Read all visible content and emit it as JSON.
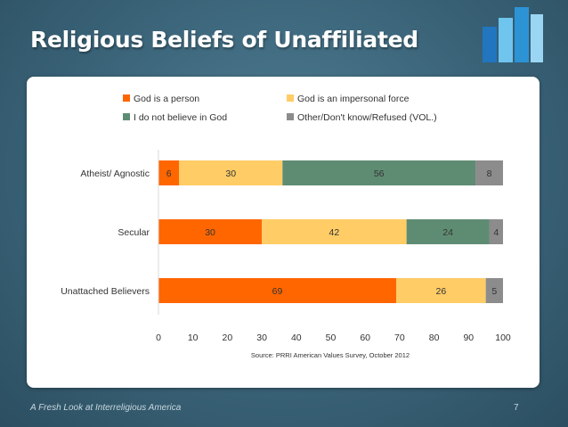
{
  "slide": {
    "title": "Religious Beliefs of Unaffiliated",
    "footer": "A Fresh Look at Interreligious America",
    "page_number": "7"
  },
  "colors": {
    "person": "#ff6600",
    "impersonal": "#ffcc66",
    "not_believe": "#5e8c73",
    "other": "#8c8c8c",
    "logo_light": "#6fc5ee",
    "logo_mid": "#2c93d5",
    "logo_dark": "#2176bf"
  },
  "chart_data": {
    "type": "bar",
    "orientation": "horizontal",
    "stacked": true,
    "categories": [
      "Atheist/ Agnostic",
      "Secular",
      "Unattached Believers"
    ],
    "series": [
      {
        "name": "God is a person",
        "values": [
          6,
          30,
          69
        ]
      },
      {
        "name": "God is an impersonal force",
        "values": [
          30,
          42,
          26
        ]
      },
      {
        "name": "I do not believe in God",
        "values": [
          56,
          24,
          0
        ]
      },
      {
        "name": "Other/Don't know/Refused (VOL.)",
        "values": [
          8,
          4,
          5
        ]
      }
    ],
    "xlim": [
      0,
      100
    ],
    "xticks": [
      0,
      10,
      20,
      30,
      40,
      50,
      60,
      70,
      80,
      90,
      100
    ],
    "legend_position": "top",
    "source": "Source: PRRI American Values Survey, October 2012",
    "grid": false
  }
}
